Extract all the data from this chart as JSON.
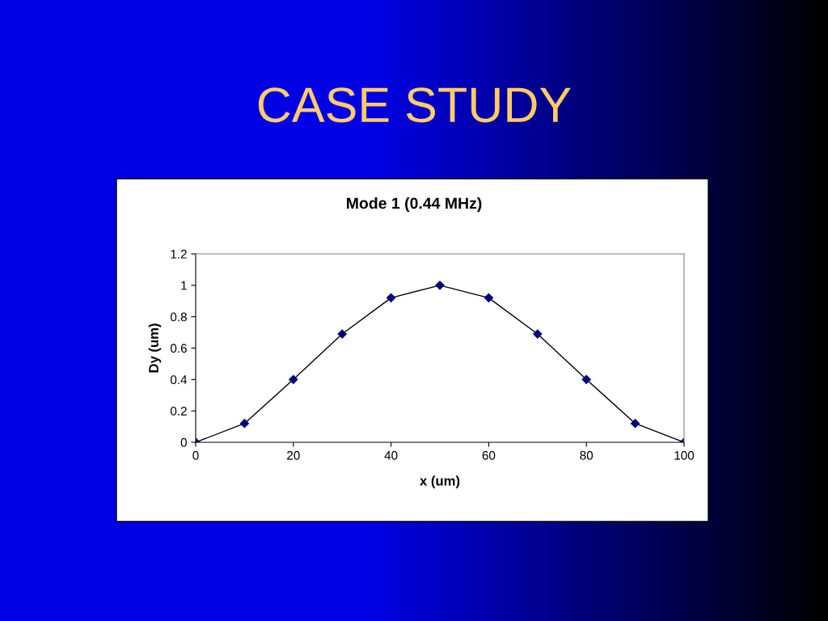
{
  "chart_data": {
    "type": "line",
    "title": "CASE STUDY",
    "subtitle": "Mode 1 (0.44 MHz)",
    "xlabel": "x (um)",
    "ylabel": "Dy (um)",
    "x": [
      0,
      10,
      20,
      30,
      40,
      50,
      60,
      70,
      80,
      90,
      100
    ],
    "series": [
      {
        "color": "#000080",
        "values": [
          0,
          0.12,
          0.4,
          0.69,
          0.92,
          1.0,
          0.92,
          0.69,
          0.4,
          0.12,
          0
        ]
      }
    ],
    "xlim": [
      0,
      100
    ],
    "xticks": [
      0,
      20,
      40,
      60,
      80,
      100
    ],
    "ylim": [
      0,
      1.2
    ],
    "yticks": [
      0,
      0.2,
      0.4,
      0.6,
      0.8,
      1,
      1.2
    ],
    "marker": "diamond",
    "grid": false,
    "legend": false
  }
}
